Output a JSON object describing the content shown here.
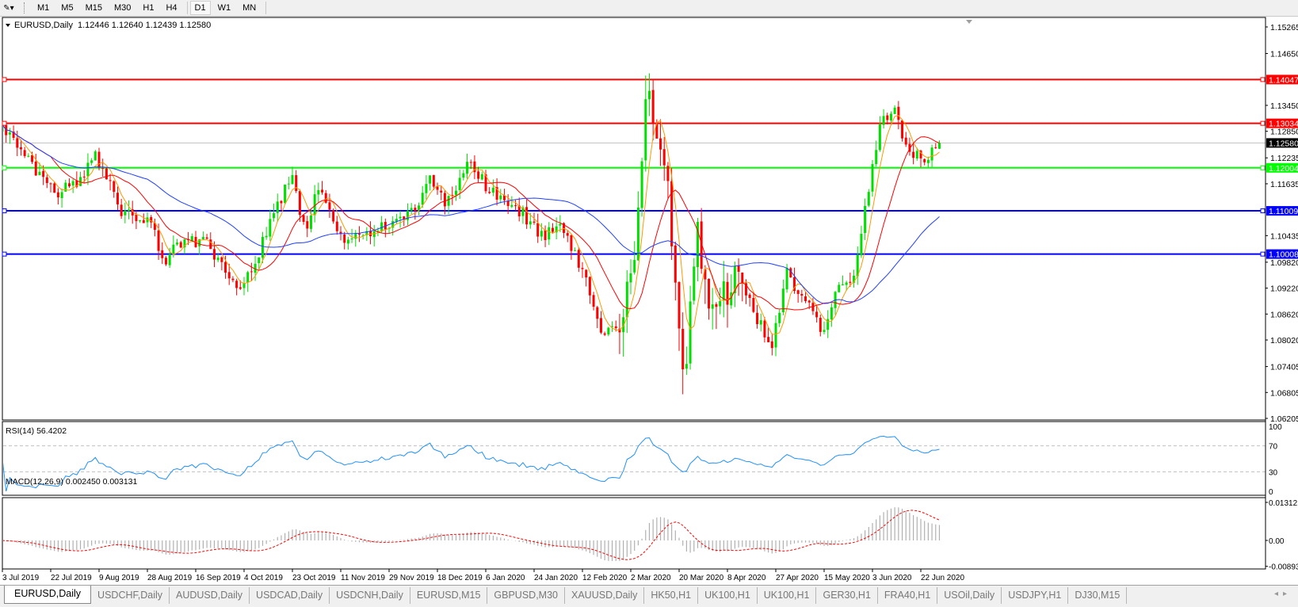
{
  "toolbar": {
    "tool_icon": "cursor-draw-icon",
    "timeframes": [
      "M1",
      "M5",
      "M15",
      "M30",
      "H1",
      "H4",
      "D1",
      "W1",
      "MN"
    ],
    "active": "D1"
  },
  "chart": {
    "symbol_title": "EURUSD,Daily",
    "ohlc_text": "1.12446 1.12640 1.12439 1.12580"
  },
  "colors": {
    "bull_candle": "#00e000",
    "bear_candle": "#ff0000",
    "ma_fast": "#ff9900",
    "ma_mid": "#ff0000",
    "ma_slow": "#1f3fff",
    "rsi_line": "#1e90ff",
    "macd_hist": "#b0b0b0",
    "macd_signal": "#ff0000",
    "current_price_line": "#c0c0c0"
  },
  "chart_data": {
    "type": "candlestick",
    "symbol": "EURUSD",
    "timeframe": "Daily",
    "last_bar": {
      "open": 1.12446,
      "high": 1.1264,
      "low": 1.12439,
      "close": 1.1258
    },
    "ylim": [
      1.06205,
      1.15265
    ],
    "price_ticks": [
      "1.15265",
      "1.14650",
      "1.13450",
      "1.12850",
      "1.12235",
      "1.11635",
      "1.10435",
      "1.09820",
      "1.09220",
      "1.08620",
      "1.08020",
      "1.07405",
      "1.06805",
      "1.06205"
    ],
    "horizontal_lines": [
      {
        "price": "1.14047",
        "color": "#ff0000"
      },
      {
        "price": "1.13034",
        "color": "#ff0000"
      },
      {
        "price": "1.12004",
        "color": "#00ff00"
      },
      {
        "price": "1.11009",
        "color": "#0000ff"
      },
      {
        "price": "1.10008",
        "color": "#0000ff"
      }
    ],
    "current_price": "1.12580",
    "x_labels": [
      {
        "text": "3 Jul 2019",
        "date": "2019-07-03"
      },
      {
        "text": "22 Jul 2019",
        "date": "2019-07-22"
      },
      {
        "text": "9 Aug 2019",
        "date": "2019-08-09"
      },
      {
        "text": "28 Aug 2019",
        "date": "2019-08-28"
      },
      {
        "text": "16 Sep 2019",
        "date": "2019-09-16"
      },
      {
        "text": "4 Oct 2019",
        "date": "2019-10-04"
      },
      {
        "text": "23 Oct 2019",
        "date": "2019-10-23"
      },
      {
        "text": "11 Nov 2019",
        "date": "2019-11-11"
      },
      {
        "text": "29 Nov 2019",
        "date": "2019-11-29"
      },
      {
        "text": "18 Dec 2019",
        "date": "2019-12-18"
      },
      {
        "text": "6 Jan 2020",
        "date": "2020-01-06"
      },
      {
        "text": "24 Jan 2020",
        "date": "2020-01-24"
      },
      {
        "text": "12 Feb 2020",
        "date": "2020-02-12"
      },
      {
        "text": "2 Mar 2020",
        "date": "2020-03-02"
      },
      {
        "text": "20 Mar 2020",
        "date": "2020-03-20"
      },
      {
        "text": "8 Apr 2020",
        "date": "2020-04-08"
      },
      {
        "text": "27 Apr 2020",
        "date": "2020-04-27"
      },
      {
        "text": "15 May 2020",
        "date": "2020-05-15"
      },
      {
        "text": "3 Jun 2020",
        "date": "2020-06-03"
      },
      {
        "text": "22 Jun 2020",
        "date": "2020-06-22"
      }
    ],
    "approx_close_path": [
      [
        "2019-07-03",
        1.1285
      ],
      [
        "2019-07-14",
        1.1215
      ],
      [
        "2019-07-24",
        1.114
      ],
      [
        "2019-08-03",
        1.117
      ],
      [
        "2019-08-07",
        1.123
      ],
      [
        "2019-08-18",
        1.11
      ],
      [
        "2019-08-29",
        1.108
      ],
      [
        "2019-09-03",
        1.098
      ],
      [
        "2019-09-12",
        1.104
      ],
      [
        "2019-09-21",
        1.102
      ],
      [
        "2019-10-01",
        1.092
      ],
      [
        "2019-10-09",
        1.099
      ],
      [
        "2019-10-17",
        1.112
      ],
      [
        "2019-10-23",
        1.117
      ],
      [
        "2019-10-28",
        1.106
      ],
      [
        "2019-11-02",
        1.115
      ],
      [
        "2019-11-11",
        1.104
      ],
      [
        "2019-11-22",
        1.105
      ],
      [
        "2019-11-30",
        1.108
      ],
      [
        "2019-12-10",
        1.11
      ],
      [
        "2019-12-16",
        1.118
      ],
      [
        "2019-12-21",
        1.111
      ],
      [
        "2019-12-30",
        1.121
      ],
      [
        "2020-01-09",
        1.114
      ],
      [
        "2020-01-19",
        1.11
      ],
      [
        "2020-01-28",
        1.104
      ],
      [
        "2020-02-02",
        1.108
      ],
      [
        "2020-02-11",
        1.098
      ],
      [
        "2020-02-20",
        1.08
      ],
      [
        "2020-02-28",
        1.086
      ],
      [
        "2020-03-04",
        1.1
      ],
      [
        "2020-03-07",
        1.13
      ],
      [
        "2020-03-09",
        1.142
      ],
      [
        "2020-03-10",
        1.13
      ],
      [
        "2020-03-15",
        1.12
      ],
      [
        "2020-03-19",
        1.095
      ],
      [
        "2020-03-21",
        1.07
      ],
      [
        "2020-03-23",
        1.076
      ],
      [
        "2020-03-27",
        1.105
      ],
      [
        "2020-04-01",
        1.085
      ],
      [
        "2020-04-06",
        1.09
      ],
      [
        "2020-04-12",
        1.095
      ],
      [
        "2020-04-20",
        1.085
      ],
      [
        "2020-04-26",
        1.079
      ],
      [
        "2020-05-01",
        1.098
      ],
      [
        "2020-05-04",
        1.09
      ],
      [
        "2020-05-09",
        1.088
      ],
      [
        "2020-05-15",
        1.082
      ],
      [
        "2020-05-21",
        1.094
      ],
      [
        "2020-05-26",
        1.092
      ],
      [
        "2020-05-31",
        1.11
      ],
      [
        "2020-06-06",
        1.13
      ],
      [
        "2020-06-11",
        1.134
      ],
      [
        "2020-06-17",
        1.125
      ],
      [
        "2020-06-22",
        1.122
      ],
      [
        "2020-06-26",
        1.123
      ],
      [
        "2020-06-30",
        1.1258
      ]
    ],
    "moving_averages": [
      "ma_fast",
      "ma_mid",
      "ma_slow"
    ],
    "rsi": {
      "label": "RSI(14) 56.4202",
      "ticks": [
        "100",
        "70",
        "30",
        "0"
      ],
      "levels": [
        70,
        30
      ],
      "ylim": [
        0,
        100
      ]
    },
    "macd": {
      "label": "MACD(12,26,9) 0.002450 0.003131",
      "ticks": [
        "0.013121",
        "0.00",
        "-0.00893"
      ],
      "ylim": [
        -0.00893,
        0.013121
      ]
    }
  },
  "tabs": {
    "items": [
      "EURUSD,Daily",
      "USDCHF,Daily",
      "AUDUSD,Daily",
      "USDCAD,Daily",
      "USDCNH,Daily",
      "EURUSD,M15",
      "GBPUSD,M30",
      "XAUUSD,Daily",
      "HK50,H1",
      "UK100,H1",
      "UK100,H1",
      "GER30,H1",
      "FRA40,H1",
      "USOil,Daily",
      "USDJPY,H1",
      "DJ30,M15"
    ],
    "active_index": 0,
    "scroll_icons": "tab-scroll-arrows-icon"
  }
}
